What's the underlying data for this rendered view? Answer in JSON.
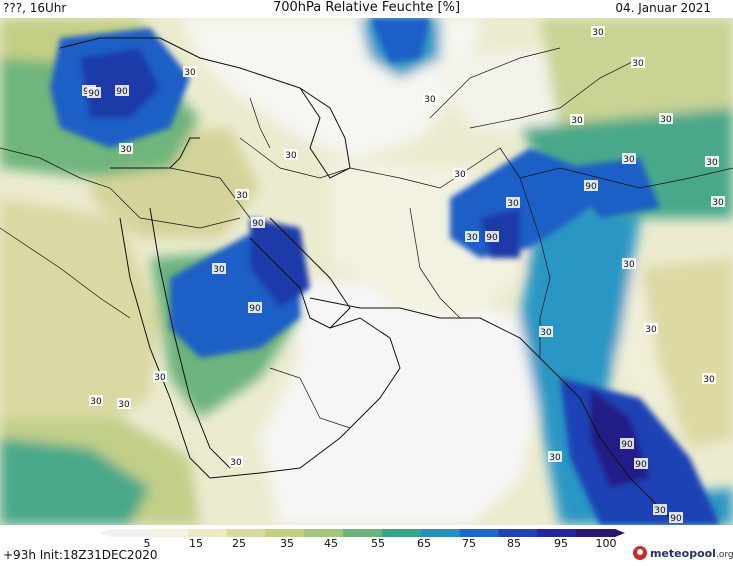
{
  "header": {
    "left": "???, 16Uhr",
    "title": "700hPa Relative Feuchte [%]",
    "date": "04. Januar 2021"
  },
  "footer": {
    "init": "+93h Init:18Z31DEC2020",
    "logo_brand": "meteopool",
    "logo_suffix": ".org"
  },
  "colorbar": {
    "ticks": [
      "5",
      "15",
      "25",
      "35",
      "45",
      "55",
      "65",
      "75",
      "85",
      "95",
      "100"
    ],
    "colors": [
      "#f2f2f2",
      "#f4f1e3",
      "#ece9c6",
      "#dad9a0",
      "#c4cf86",
      "#a4c57c",
      "#6cb37e",
      "#3aa48b",
      "#2a8fbb",
      "#1f67c8",
      "#1f43b5",
      "#21289a",
      "#2d1473"
    ]
  },
  "contour_labels": [
    "30",
    "30",
    "30",
    "30",
    "30",
    "30",
    "30",
    "30",
    "30",
    "30",
    "30",
    "30",
    "30",
    "30",
    "30",
    "30",
    "30",
    "30",
    "30",
    "30",
    "30",
    "30",
    "30",
    "30",
    "30",
    "30",
    "90",
    "90",
    "90",
    "90",
    "90",
    "90",
    "90",
    "90",
    "90",
    "90"
  ],
  "palette": {
    "white": "#f6f6f6",
    "cream": "#f2efd9",
    "khaki": "#dcd9a3",
    "olive": "#c2cf89",
    "green": "#6fb57d",
    "teal": "#3aa38b",
    "cyan": "#2b96c4",
    "blue": "#1f5fc6",
    "navy": "#1f3aa8",
    "indigo": "#241f87",
    "border": "#111111"
  }
}
